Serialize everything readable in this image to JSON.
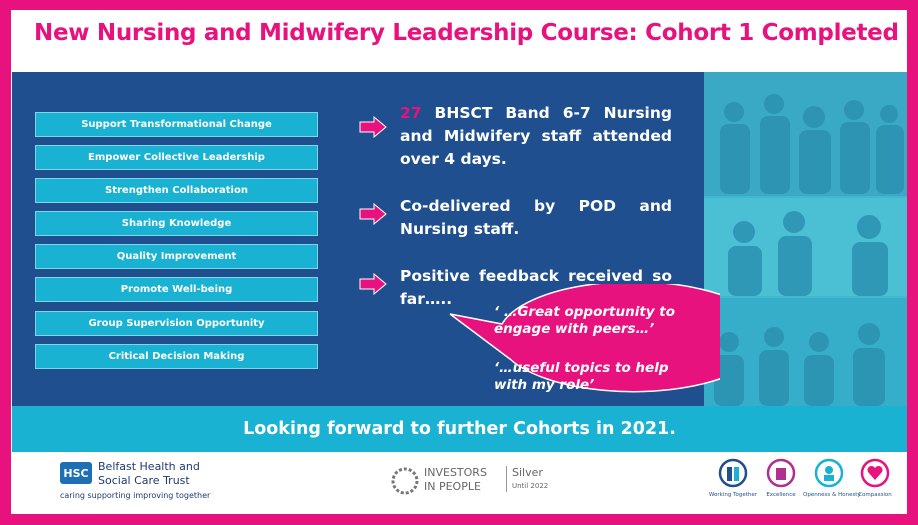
{
  "header": {
    "title": "New Nursing and Midwifery Leadership Course: Cohort 1 Completed"
  },
  "aims": [
    "Support Transformational Change",
    "Empower Collective Leadership",
    "Strengthen Collaboration",
    "Sharing Knowledge",
    "Quality Improvement",
    "Promote Well-being",
    "Group Supervision Opportunity",
    "Critical Decision Making"
  ],
  "bullets": [
    {
      "highlight": "27",
      "text": "BHSCT Band 6-7 Nursing and Midwifery staff attended over 4 days."
    },
    {
      "text": "Co-delivered by POD and Nursing staff."
    },
    {
      "text": "Positive feedback received so far….."
    }
  ],
  "quotes": [
    "‘ …Great opportunity to engage with peers…’",
    "‘…useful topics to help with my role’"
  ],
  "banner": "Looking forward to further Cohorts in 2021.",
  "footer": {
    "trust": {
      "badge": "HSC",
      "name_line1": "Belfast Health and",
      "name_line2": "Social Care Trust",
      "tagline": "caring supporting improving together"
    },
    "iip": {
      "line1": "INVESTORS",
      "line2": "IN PEOPLE",
      "level": "Silver",
      "until": "Until 2022"
    },
    "values": [
      "Working Together",
      "Excellence",
      "Openness & Honesty",
      "Compassion"
    ]
  }
}
